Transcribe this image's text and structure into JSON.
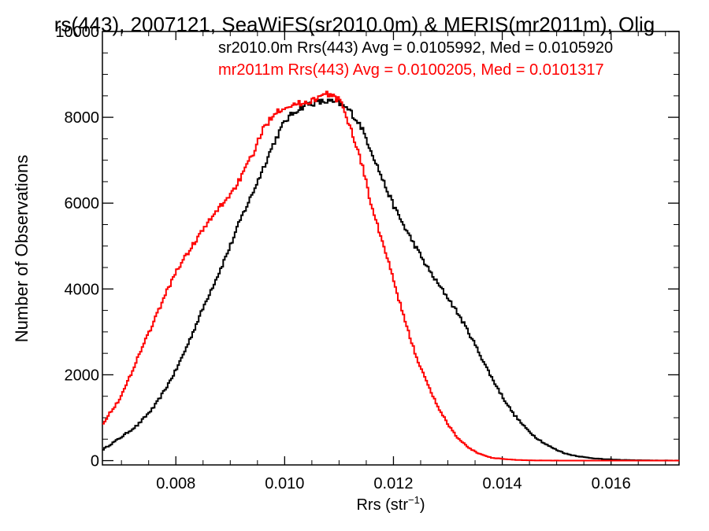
{
  "chart_data": {
    "type": "line",
    "title": "rs(443), 2007121, SeaWiFS(sr2010.0m) & MERIS(mr2011m), Olig",
    "xlabel_main": "Rrs (str",
    "xlabel_sup": "−1",
    "xlabel_close": ")",
    "ylabel": "Number of Observations",
    "xlim": [
      0.00665,
      0.01725
    ],
    "ylim": [
      -100,
      10000
    ],
    "x_ticks": [
      0.008,
      0.01,
      0.012,
      0.014,
      0.016
    ],
    "x_tick_labels": [
      "0.008",
      "0.010",
      "0.012",
      "0.014",
      "0.016"
    ],
    "y_ticks": [
      0,
      2000,
      4000,
      6000,
      8000,
      10000
    ],
    "y_tick_labels": [
      "0",
      "2000",
      "4000",
      "6000",
      "8000",
      "10000"
    ],
    "grid": false,
    "legend_position": "top-right",
    "series": [
      {
        "name": "sr2010.0m Rrs(443) Avg = 0.0105992, Med = 0.0105920",
        "color": "#000000",
        "x": [
          0.00665,
          0.007,
          0.0073,
          0.0076,
          0.0078,
          0.008,
          0.0082,
          0.0084,
          0.0086,
          0.0088,
          0.009,
          0.0092,
          0.0094,
          0.0096,
          0.0098,
          0.01,
          0.0102,
          0.0104,
          0.0106,
          0.0108,
          0.011,
          0.0112,
          0.0114,
          0.0116,
          0.0118,
          0.012,
          0.0122,
          0.0124,
          0.0126,
          0.0128,
          0.013,
          0.0132,
          0.0134,
          0.0136,
          0.0138,
          0.014,
          0.0142,
          0.0144,
          0.0146,
          0.0148,
          0.015,
          0.0152,
          0.0155,
          0.0158,
          0.0161,
          0.0164,
          0.0167,
          0.017,
          0.01725
        ],
        "y": [
          250,
          550,
          830,
          1250,
          1650,
          2100,
          2650,
          3250,
          3850,
          4400,
          5000,
          5650,
          6200,
          6800,
          7400,
          7900,
          8150,
          8300,
          8350,
          8370,
          8330,
          8150,
          7800,
          7200,
          6550,
          5950,
          5450,
          5000,
          4550,
          4150,
          3800,
          3400,
          2950,
          2450,
          1950,
          1500,
          1100,
          800,
          560,
          380,
          250,
          150,
          80,
          40,
          20,
          10,
          5,
          3,
          2
        ]
      },
      {
        "name": "mr2011m Rrs(443) Avg = 0.0100205, Med = 0.0101317",
        "color": "#ff0000",
        "x": [
          0.00665,
          0.007,
          0.0072,
          0.0074,
          0.0076,
          0.0078,
          0.008,
          0.0082,
          0.0084,
          0.0086,
          0.0088,
          0.009,
          0.0092,
          0.0094,
          0.0096,
          0.0098,
          0.01,
          0.0102,
          0.0104,
          0.0106,
          0.0108,
          0.011,
          0.0111,
          0.0112,
          0.0113,
          0.0114,
          0.0115,
          0.0116,
          0.0118,
          0.012,
          0.0122,
          0.0124,
          0.0126,
          0.0128,
          0.013,
          0.0132,
          0.0134,
          0.0136,
          0.0138,
          0.014,
          0.0142,
          0.0144,
          0.0146,
          0.0148,
          0.015,
          0.0155,
          0.016,
          0.0165,
          0.01725
        ],
        "y": [
          850,
          1500,
          2100,
          2700,
          3250,
          3850,
          4400,
          4800,
          5200,
          5550,
          5900,
          6200,
          6600,
          7100,
          7700,
          8100,
          8250,
          8300,
          8350,
          8450,
          8550,
          8400,
          8150,
          7800,
          7400,
          7000,
          6500,
          5900,
          5100,
          4200,
          3300,
          2500,
          1850,
          1300,
          850,
          500,
          280,
          150,
          70,
          40,
          20,
          10,
          5,
          3,
          2,
          1,
          0,
          0,
          0
        ]
      }
    ]
  }
}
